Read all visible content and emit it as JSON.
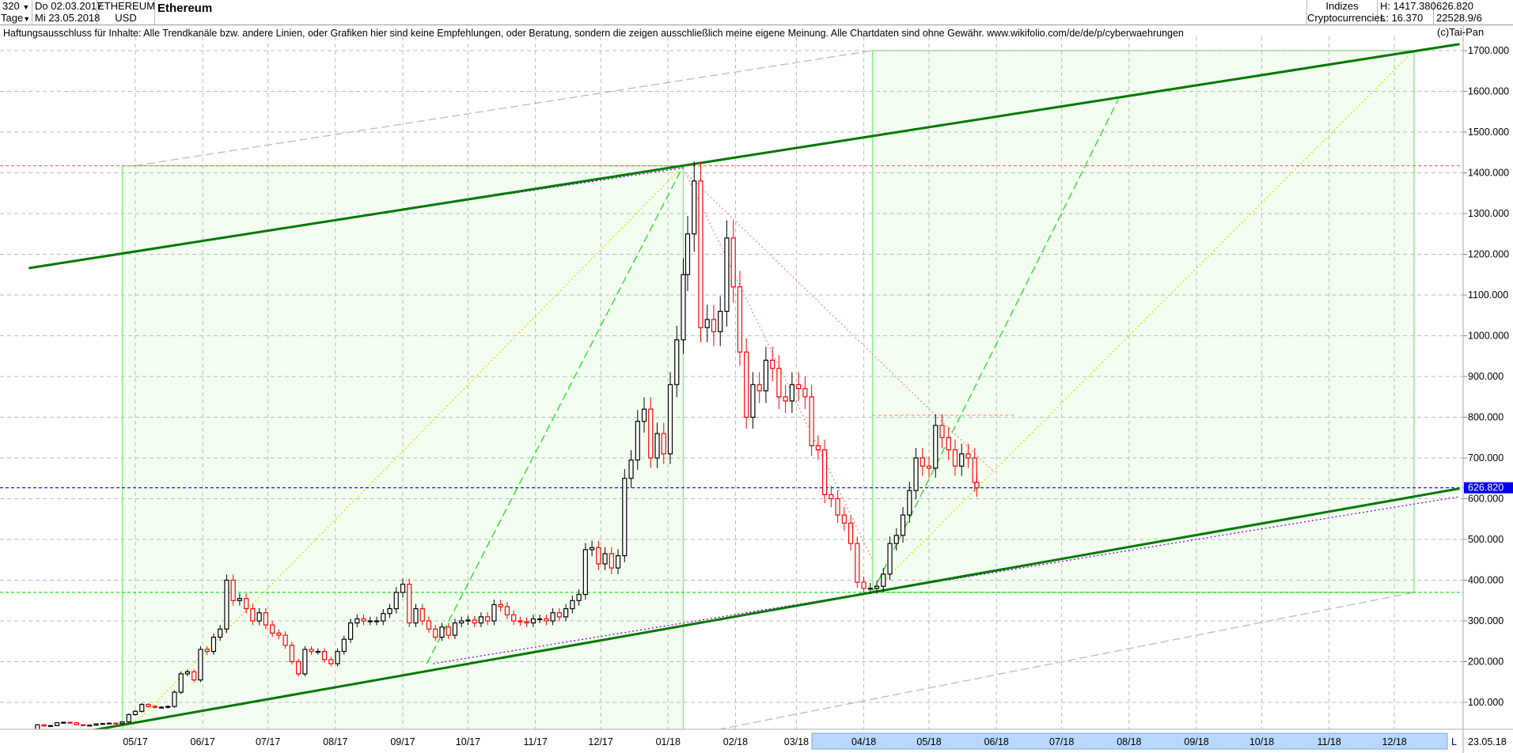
{
  "header": {
    "period_value": "320",
    "period_unit": "Tage",
    "date_from": "Do 02.03.2017",
    "date_to": "Mi 23.05.2018",
    "symbol": "ETHEREUM",
    "currency": "USD",
    "name": "Ethereum",
    "group_1": "Indizes",
    "group_2": "Cryptocurrencies",
    "high": "H: 1417.380",
    "low": "L: 16.370",
    "last": "626.820",
    "extra": "22528.9/6"
  },
  "disclaimer": "Haftungsausschluss für Inhalte: Alle Trendkanäle bzw. andere Linien, oder Grafiken hier sind keine Empfehlungen, oder Beratung, sondern die zeigen ausschließlich meine eigene Meinung. Alle Chartdaten sind ohne Gewähr.  www.wikifolio.com/de/de/p/cyberwaehrungen",
  "credit": "(c)Tai-Pan",
  "colors": {
    "up": "#000000",
    "down": "#ff0000",
    "channel": "#007700",
    "box": "#f2fff0",
    "box_border": "#88ee88",
    "last_price": "#0000ee",
    "axis_bar": "#b8d8ff"
  },
  "chart_data": {
    "type": "candlestick",
    "title": "Ethereum",
    "ylim": [
      0,
      1750
    ],
    "yticks": [
      "100.000",
      "200.000",
      "300.000",
      "400.000",
      "500.000",
      "600.000",
      "700.000",
      "800.000",
      "900.000",
      "1000.000",
      "1100.000",
      "1200.000",
      "1300.000",
      "1400.000",
      "1500.000",
      "1600.000",
      "1700.000"
    ],
    "xticks": [
      [
        "2017-05-01",
        "05/17"
      ],
      [
        "2017-06-01",
        "06/17"
      ],
      [
        "2017-07-01",
        "07/17"
      ],
      [
        "2017-08-01",
        "08/17"
      ],
      [
        "2017-09-01",
        "09/17"
      ],
      [
        "2017-10-01",
        "10/17"
      ],
      [
        "2017-11-01",
        "11/17"
      ],
      [
        "2017-12-01",
        "12/17"
      ],
      [
        "2018-01-01",
        "01/18"
      ],
      [
        "2018-02-01",
        "02/18"
      ],
      [
        "2018-03-01",
        "03/18"
      ],
      [
        "2018-04-01",
        "04/18"
      ],
      [
        "2018-05-01",
        "05/18"
      ],
      [
        "2018-06-01",
        "06/18"
      ],
      [
        "2018-07-01",
        "07/18"
      ],
      [
        "2018-08-01",
        "08/18"
      ],
      [
        "2018-09-01",
        "09/18"
      ],
      [
        "2018-10-01",
        "10/18"
      ],
      [
        "2018-11-01",
        "11/18"
      ],
      [
        "2018-12-01",
        "12/18"
      ]
    ],
    "x_end_label": "23.05.18",
    "x_end_marker": "L",
    "grid": true,
    "last_price": 626.82,
    "last_price_label": "626.820",
    "closes": [
      [
        "2017-03-02",
        17
      ],
      [
        "2017-03-05",
        19
      ],
      [
        "2017-03-08",
        17
      ],
      [
        "2017-03-11",
        22
      ],
      [
        "2017-03-14",
        28
      ],
      [
        "2017-03-17",
        45
      ],
      [
        "2017-03-20",
        42
      ],
      [
        "2017-03-23",
        43
      ],
      [
        "2017-03-26",
        50
      ],
      [
        "2017-03-29",
        51
      ],
      [
        "2017-04-01",
        50
      ],
      [
        "2017-04-04",
        45
      ],
      [
        "2017-04-07",
        43
      ],
      [
        "2017-04-10",
        44
      ],
      [
        "2017-04-13",
        47
      ],
      [
        "2017-04-16",
        48
      ],
      [
        "2017-04-19",
        49
      ],
      [
        "2017-04-22",
        48
      ],
      [
        "2017-04-25",
        52
      ],
      [
        "2017-04-28",
        70
      ],
      [
        "2017-05-01",
        78
      ],
      [
        "2017-05-04",
        95
      ],
      [
        "2017-05-07",
        90
      ],
      [
        "2017-05-10",
        88
      ],
      [
        "2017-05-13",
        88
      ],
      [
        "2017-05-16",
        90
      ],
      [
        "2017-05-19",
        125
      ],
      [
        "2017-05-22",
        170
      ],
      [
        "2017-05-25",
        175
      ],
      [
        "2017-05-28",
        155
      ],
      [
        "2017-05-31",
        230
      ],
      [
        "2017-06-03",
        225
      ],
      [
        "2017-06-06",
        260
      ],
      [
        "2017-06-09",
        280
      ],
      [
        "2017-06-12",
        400
      ],
      [
        "2017-06-15",
        350
      ],
      [
        "2017-06-18",
        355
      ],
      [
        "2017-06-21",
        330
      ],
      [
        "2017-06-24",
        300
      ],
      [
        "2017-06-27",
        320
      ],
      [
        "2017-06-30",
        290
      ],
      [
        "2017-07-03",
        270
      ],
      [
        "2017-07-06",
        265
      ],
      [
        "2017-07-09",
        240
      ],
      [
        "2017-07-12",
        200
      ],
      [
        "2017-07-15",
        170
      ],
      [
        "2017-07-18",
        230
      ],
      [
        "2017-07-21",
        225
      ],
      [
        "2017-07-24",
        225
      ],
      [
        "2017-07-27",
        205
      ],
      [
        "2017-07-30",
        195
      ],
      [
        "2017-08-02",
        225
      ],
      [
        "2017-08-05",
        255
      ],
      [
        "2017-08-08",
        295
      ],
      [
        "2017-08-11",
        305
      ],
      [
        "2017-08-14",
        300
      ],
      [
        "2017-08-17",
        300
      ],
      [
        "2017-08-20",
        300
      ],
      [
        "2017-08-23",
        318
      ],
      [
        "2017-08-26",
        330
      ],
      [
        "2017-08-29",
        370
      ],
      [
        "2017-09-01",
        390
      ],
      [
        "2017-09-04",
        295
      ],
      [
        "2017-09-07",
        330
      ],
      [
        "2017-09-10",
        300
      ],
      [
        "2017-09-13",
        280
      ],
      [
        "2017-09-16",
        260
      ],
      [
        "2017-09-19",
        285
      ],
      [
        "2017-09-22",
        265
      ],
      [
        "2017-09-25",
        295
      ],
      [
        "2017-09-28",
        300
      ],
      [
        "2017-10-01",
        302
      ],
      [
        "2017-10-04",
        295
      ],
      [
        "2017-10-07",
        310
      ],
      [
        "2017-10-10",
        300
      ],
      [
        "2017-10-13",
        340
      ],
      [
        "2017-10-16",
        335
      ],
      [
        "2017-10-19",
        315
      ],
      [
        "2017-10-22",
        300
      ],
      [
        "2017-10-25",
        298
      ],
      [
        "2017-10-28",
        295
      ],
      [
        "2017-10-31",
        305
      ],
      [
        "2017-11-03",
        305
      ],
      [
        "2017-11-06",
        300
      ],
      [
        "2017-11-09",
        320
      ],
      [
        "2017-11-12",
        310
      ],
      [
        "2017-11-15",
        330
      ],
      [
        "2017-11-18",
        350
      ],
      [
        "2017-11-21",
        365
      ],
      [
        "2017-11-24",
        475
      ],
      [
        "2017-11-27",
        480
      ],
      [
        "2017-11-30",
        440
      ],
      [
        "2017-12-03",
        465
      ],
      [
        "2017-12-06",
        430
      ],
      [
        "2017-12-09",
        460
      ],
      [
        "2017-12-12",
        650
      ],
      [
        "2017-12-15",
        695
      ],
      [
        "2017-12-18",
        790
      ],
      [
        "2017-12-21",
        820
      ],
      [
        "2017-12-24",
        700
      ],
      [
        "2017-12-27",
        760
      ],
      [
        "2017-12-30",
        710
      ],
      [
        "2018-01-02",
        880
      ],
      [
        "2018-01-05",
        990
      ],
      [
        "2018-01-08",
        1150
      ],
      [
        "2018-01-10",
        1250
      ],
      [
        "2018-01-13",
        1380
      ],
      [
        "2018-01-16",
        1020
      ],
      [
        "2018-01-19",
        1040
      ],
      [
        "2018-01-22",
        1010
      ],
      [
        "2018-01-25",
        1060
      ],
      [
        "2018-01-28",
        1240
      ],
      [
        "2018-01-31",
        1120
      ],
      [
        "2018-02-03",
        960
      ],
      [
        "2018-02-06",
        800
      ],
      [
        "2018-02-09",
        880
      ],
      [
        "2018-02-12",
        865
      ],
      [
        "2018-02-15",
        940
      ],
      [
        "2018-02-18",
        920
      ],
      [
        "2018-02-21",
        850
      ],
      [
        "2018-02-24",
        840
      ],
      [
        "2018-02-27",
        880
      ],
      [
        "2018-03-02",
        870
      ],
      [
        "2018-03-05",
        850
      ],
      [
        "2018-03-08",
        730
      ],
      [
        "2018-03-11",
        720
      ],
      [
        "2018-03-14",
        610
      ],
      [
        "2018-03-17",
        600
      ],
      [
        "2018-03-20",
        560
      ],
      [
        "2018-03-23",
        540
      ],
      [
        "2018-03-26",
        490
      ],
      [
        "2018-03-29",
        395
      ],
      [
        "2018-04-01",
        380
      ],
      [
        "2018-04-04",
        380
      ],
      [
        "2018-04-07",
        385
      ],
      [
        "2018-04-10",
        415
      ],
      [
        "2018-04-13",
        490
      ],
      [
        "2018-04-16",
        510
      ],
      [
        "2018-04-19",
        560
      ],
      [
        "2018-04-22",
        620
      ],
      [
        "2018-04-25",
        700
      ],
      [
        "2018-04-28",
        680
      ],
      [
        "2018-05-01",
        675
      ],
      [
        "2018-05-04",
        780
      ],
      [
        "2018-05-07",
        750
      ],
      [
        "2018-05-10",
        720
      ],
      [
        "2018-05-13",
        680
      ],
      [
        "2018-05-16",
        710
      ],
      [
        "2018-05-19",
        700
      ],
      [
        "2018-05-22",
        640
      ],
      [
        "2018-05-23",
        626.82
      ]
    ],
    "annotations": {
      "boxes": [
        {
          "from": [
            "2017-04-25",
            16.37
          ],
          "to": [
            "2018-01-08",
            1417.38
          ]
        },
        {
          "from": [
            "2018-04-05",
            370
          ],
          "to": [
            "2018-12-10",
            1700
          ]
        }
      ],
      "horizontal_lines": [
        {
          "price": 1417.38,
          "color": "#ff6666"
        },
        {
          "price": 370,
          "color": "#00dd00"
        },
        {
          "price": 626.82,
          "color": "#0000ee"
        },
        {
          "price": 805,
          "color": "#ff8888",
          "from": "2018-04-05",
          "to": "2018-06-10"
        }
      ],
      "channel_lines": [
        {
          "from": [
            "2017-03-13",
            1166
          ],
          "to": [
            "2018-12-31",
            1716
          ],
          "color": "#007700"
        },
        {
          "from": [
            "2017-03-13",
            4
          ],
          "to": [
            "2018-12-31",
            625
          ],
          "color": "#007700"
        }
      ],
      "dotted_lines": [
        {
          "from": [
            "2017-08-20",
            1300
          ],
          "to": [
            "2018-01-08",
            1412
          ],
          "color": "#8800ff"
        },
        {
          "from": [
            "2017-09-15",
            195
          ],
          "to": [
            "2018-12-31",
            605
          ],
          "color": "#8800ff"
        },
        {
          "from": [
            "2017-04-25",
            16.37
          ],
          "to": [
            "2018-01-08",
            1417.38
          ],
          "color": "#dddd00"
        },
        {
          "from": [
            "2018-04-05",
            370
          ],
          "to": [
            "2018-12-10",
            1700
          ],
          "color": "#dddd00"
        },
        {
          "from": [
            "2018-01-09",
            1400
          ],
          "to": [
            "2018-04-05",
            450
          ],
          "color": "#ff8888"
        },
        {
          "from": [
            "2018-01-10",
            1395
          ],
          "to": [
            "2018-05-31",
            665
          ],
          "color": "#ff8888"
        }
      ],
      "dashed_lines": [
        {
          "from": [
            "2017-09-12",
            195
          ],
          "to": [
            "2018-01-08",
            1417.38
          ],
          "color": "#22dd22"
        },
        {
          "from": [
            "2018-04-05",
            370
          ],
          "to": [
            "2018-07-27",
            1580
          ],
          "color": "#22dd22"
        },
        {
          "from": [
            "2017-05-01",
            1417.38
          ],
          "to": [
            "2018-04-05",
            1700
          ],
          "color": "#bbbbbb"
        },
        {
          "from": [
            "2018-01-08",
            16.37
          ],
          "to": [
            "2018-12-10",
            370
          ],
          "color": "#bbbbbb"
        }
      ]
    }
  }
}
